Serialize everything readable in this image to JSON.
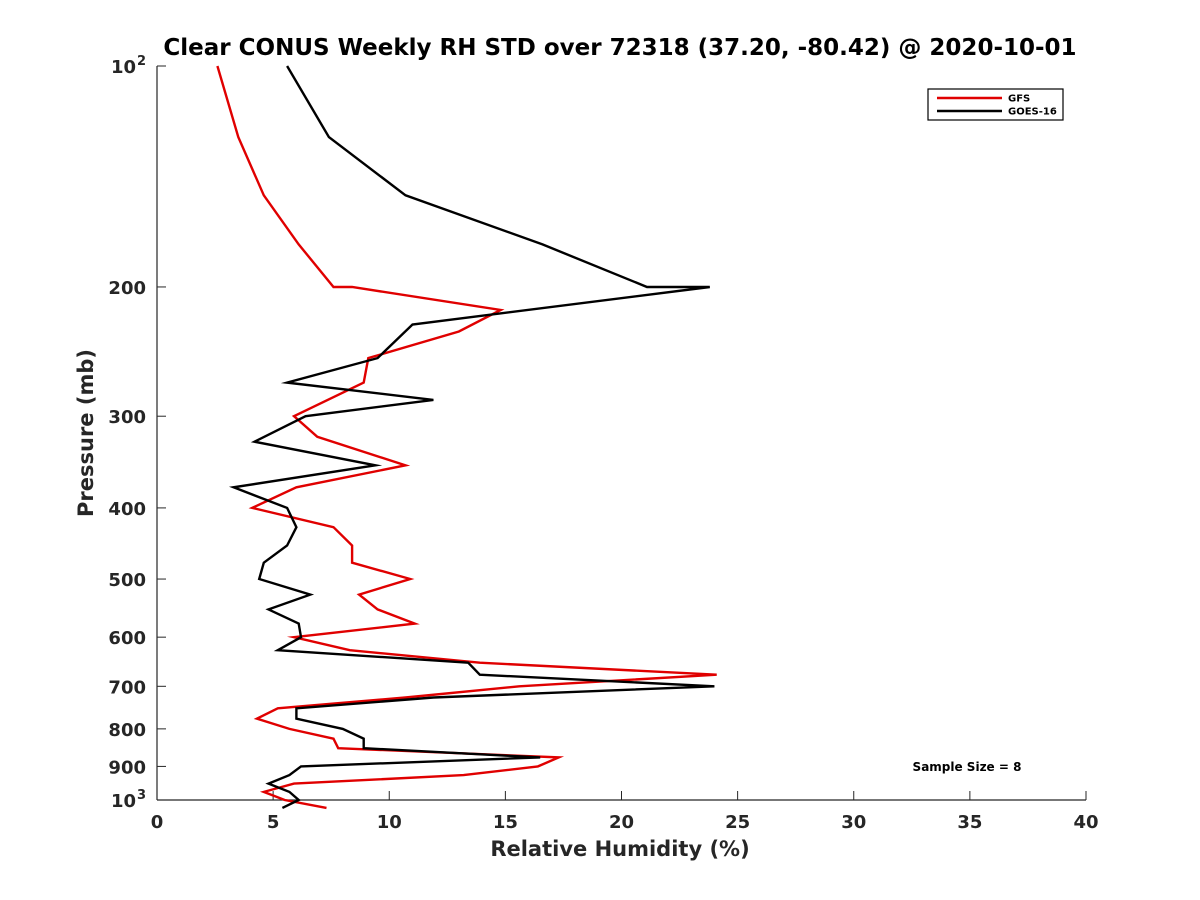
{
  "chart_data": {
    "type": "line",
    "title": "Clear CONUS Weekly RH STD over 72318 (37.20, -80.42) @ 2020-10-01",
    "xlabel": "Relative Humidity (%)",
    "ylabel": "Pressure (mb)",
    "xlim": [
      0,
      40
    ],
    "ylim": [
      100,
      1000
    ],
    "y_scale": "log",
    "y_reversed": true,
    "x_ticks": [
      "0",
      "5",
      "10",
      "15",
      "20",
      "25",
      "30",
      "35",
      "40"
    ],
    "y_ticks": [
      {
        "value": 100,
        "label": "10",
        "sup": "2"
      },
      {
        "value": 200,
        "label": "200",
        "sup": ""
      },
      {
        "value": 300,
        "label": "300",
        "sup": ""
      },
      {
        "value": 400,
        "label": "400",
        "sup": ""
      },
      {
        "value": 500,
        "label": "500",
        "sup": ""
      },
      {
        "value": 600,
        "label": "600",
        "sup": ""
      },
      {
        "value": 700,
        "label": "700",
        "sup": ""
      },
      {
        "value": 800,
        "label": "800",
        "sup": ""
      },
      {
        "value": 900,
        "label": "900",
        "sup": ""
      },
      {
        "value": 1000,
        "label": "10",
        "sup": "3"
      }
    ],
    "grid": false,
    "legend_position": "top-right",
    "annotation": "Sample Size = 8",
    "series": [
      {
        "name": "GFS",
        "color": "#e00000",
        "points": [
          [
            2.6,
            100
          ],
          [
            3.5,
            125
          ],
          [
            4.6,
            150
          ],
          [
            6.1,
            175
          ],
          [
            7.6,
            200
          ],
          [
            8.4,
            200
          ],
          [
            14.8,
            215
          ],
          [
            13.0,
            230
          ],
          [
            9.1,
            250
          ],
          [
            8.9,
            270
          ],
          [
            5.9,
            300
          ],
          [
            6.9,
            320
          ],
          [
            10.7,
            350
          ],
          [
            6.0,
            375
          ],
          [
            4.1,
            400
          ],
          [
            7.6,
            425
          ],
          [
            8.4,
            450
          ],
          [
            8.4,
            475
          ],
          [
            10.9,
            500
          ],
          [
            8.7,
            525
          ],
          [
            9.5,
            550
          ],
          [
            11.1,
            575
          ],
          [
            5.9,
            600
          ],
          [
            8.3,
            625
          ],
          [
            13.9,
            650
          ],
          [
            24.1,
            675
          ],
          [
            15.6,
            700
          ],
          [
            10.7,
            725
          ],
          [
            5.2,
            750
          ],
          [
            4.3,
            775
          ],
          [
            5.7,
            800
          ],
          [
            7.6,
            825
          ],
          [
            7.8,
            850
          ],
          [
            17.3,
            875
          ],
          [
            16.4,
            900
          ],
          [
            13.2,
            925
          ],
          [
            5.9,
            950
          ],
          [
            4.6,
            975
          ],
          [
            5.5,
            1000
          ],
          [
            7.3,
            1025
          ]
        ]
      },
      {
        "name": "GOES-16",
        "color": "#000000",
        "points": [
          [
            5.6,
            100
          ],
          [
            7.4,
            125
          ],
          [
            10.7,
            150
          ],
          [
            16.6,
            175
          ],
          [
            21.1,
            200
          ],
          [
            23.8,
            200
          ],
          [
            11.0,
            225
          ],
          [
            9.5,
            250
          ],
          [
            5.6,
            270
          ],
          [
            11.9,
            285
          ],
          [
            6.4,
            300
          ],
          [
            4.2,
            325
          ],
          [
            9.4,
            350
          ],
          [
            3.3,
            375
          ],
          [
            5.6,
            400
          ],
          [
            6.0,
            425
          ],
          [
            5.6,
            450
          ],
          [
            4.6,
            475
          ],
          [
            4.4,
            500
          ],
          [
            6.6,
            525
          ],
          [
            4.8,
            550
          ],
          [
            6.1,
            575
          ],
          [
            6.2,
            600
          ],
          [
            5.2,
            625
          ],
          [
            13.4,
            650
          ],
          [
            13.9,
            675
          ],
          [
            24.0,
            700
          ],
          [
            11.9,
            725
          ],
          [
            6.0,
            750
          ],
          [
            6.0,
            775
          ],
          [
            8.0,
            800
          ],
          [
            8.9,
            825
          ],
          [
            8.9,
            850
          ],
          [
            16.5,
            875
          ],
          [
            6.2,
            900
          ],
          [
            5.7,
            925
          ],
          [
            4.8,
            950
          ],
          [
            5.7,
            975
          ],
          [
            6.1,
            1000
          ],
          [
            5.4,
            1025
          ]
        ]
      }
    ]
  }
}
